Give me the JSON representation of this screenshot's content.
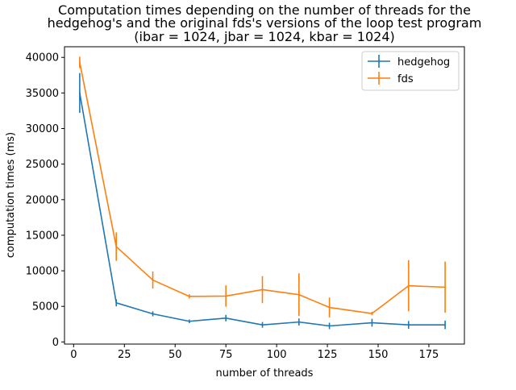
{
  "chart_data": {
    "type": "line",
    "title_lines": [
      "Computation times depending on the number of threads for the",
      "hedgehog's and the original fds's versions of the loop test program",
      "(ibar = 1024, jbar = 1024, kbar = 1024)"
    ],
    "xlabel": "number of threads",
    "ylabel": "computation times (ms)",
    "xlim": [
      -4.5,
      192.5
    ],
    "ylim": [
      -300,
      41500
    ],
    "xticks": [
      0,
      25,
      50,
      75,
      100,
      125,
      150,
      175
    ],
    "yticks": [
      0,
      5000,
      10000,
      15000,
      20000,
      25000,
      30000,
      35000,
      40000
    ],
    "legend_position": "upper-right",
    "series": [
      {
        "name": "hedgehog",
        "color": "#1f77b4",
        "x": [
          3,
          21,
          39,
          57,
          75,
          93,
          111,
          126,
          147,
          165,
          183
        ],
        "y": [
          35000,
          5500,
          3950,
          2900,
          3350,
          2400,
          2800,
          2250,
          2700,
          2400,
          2400
        ],
        "yerr": [
          2800,
          500,
          350,
          250,
          450,
          400,
          500,
          450,
          550,
          550,
          600
        ]
      },
      {
        "name": "fds",
        "color": "#ff7f0e",
        "x": [
          3,
          21,
          39,
          57,
          75,
          93,
          111,
          126,
          147,
          165,
          183
        ],
        "y": [
          39300,
          13400,
          8700,
          6400,
          6450,
          7350,
          6650,
          4850,
          4000,
          7900,
          7700
        ],
        "yerr": [
          800,
          2000,
          1200,
          300,
          1500,
          1900,
          3000,
          1400,
          250,
          3600,
          3600
        ]
      }
    ]
  }
}
